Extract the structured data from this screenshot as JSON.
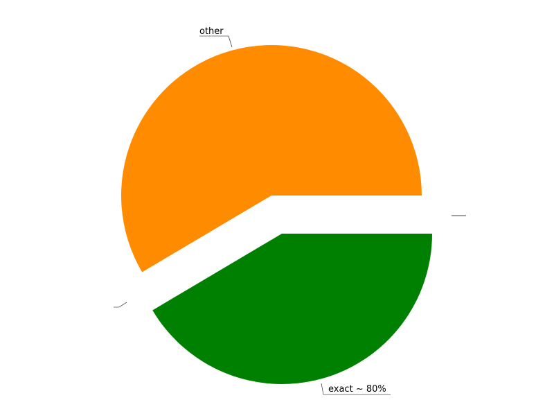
{
  "chart_data": {
    "type": "pie",
    "title": "",
    "slices": [
      {
        "label": "other",
        "value": 58.5,
        "color": "#ff8c00",
        "exploded": false
      },
      {
        "label": "exact ~ 80%",
        "value": 41.5,
        "color": "#008000",
        "exploded": true
      }
    ],
    "start_angle_deg": 0,
    "direction": "counterclockwise",
    "legend": "none"
  }
}
